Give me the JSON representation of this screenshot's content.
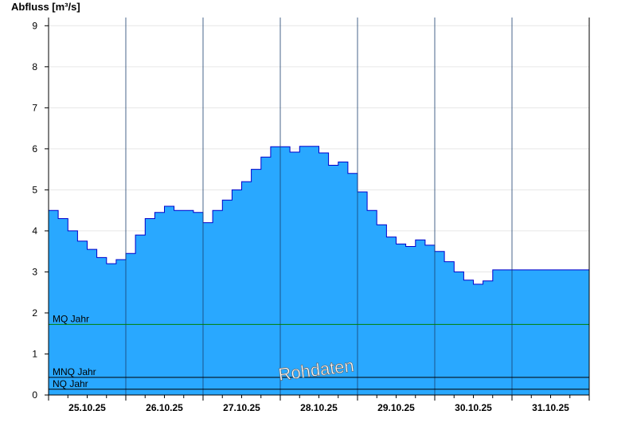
{
  "chart_data": {
    "type": "area",
    "ylabel": "Abfluss [m³/s]",
    "ylim": [
      0,
      9.2
    ],
    "yticks": [
      0,
      1,
      2,
      3,
      4,
      5,
      6,
      7,
      8,
      9
    ],
    "x_start": "25.10.25 00:00",
    "x_end": "01.11.25 00:00",
    "day_labels": [
      "25.10.25",
      "26.10.25",
      "27.10.25",
      "28.10.25",
      "29.10.25",
      "30.10.25",
      "31.10.25"
    ],
    "grid": true,
    "fill_color": "#29a8ff",
    "line_color": "#0000cc",
    "series": [
      {
        "x_hours": [
          0,
          3,
          6,
          9,
          12,
          15,
          18,
          21,
          24,
          27,
          30,
          33,
          36,
          39,
          42,
          45,
          48,
          51,
          54,
          57,
          60,
          63,
          66,
          69,
          72,
          75,
          78,
          81,
          84,
          87,
          90,
          93,
          96,
          99,
          102,
          105,
          108,
          111,
          114,
          117,
          120,
          123,
          126,
          129,
          132,
          135,
          138,
          141,
          144,
          147,
          150,
          153,
          156,
          159,
          162,
          165,
          168
        ],
        "values": [
          4.5,
          4.3,
          4.0,
          3.75,
          3.55,
          3.35,
          3.2,
          3.3,
          3.45,
          3.9,
          4.3,
          4.45,
          4.6,
          4.5,
          4.5,
          4.45,
          4.2,
          4.5,
          4.75,
          5.0,
          5.2,
          5.5,
          5.8,
          6.05,
          6.05,
          5.92,
          6.06,
          6.06,
          5.9,
          5.6,
          5.68,
          5.4,
          4.95,
          4.5,
          4.15,
          3.85,
          3.68,
          3.62,
          3.78,
          3.65,
          3.5,
          3.25,
          3.0,
          2.8,
          2.7,
          2.78,
          3.05,
          3.05,
          3.05,
          3.05,
          3.05,
          3.05,
          3.05,
          3.05,
          3.05,
          3.05,
          3.05
        ]
      }
    ],
    "x_end_hours": 168,
    "reference_lines": [
      {
        "label": "MQ Jahr",
        "value": 1.72,
        "color": "#008000"
      },
      {
        "label": "MNQ Jahr",
        "value": 0.43,
        "color": "#000000"
      },
      {
        "label": "NQ Jahr",
        "value": 0.14,
        "color": "#000000"
      }
    ],
    "watermark": "Rohdaten"
  }
}
